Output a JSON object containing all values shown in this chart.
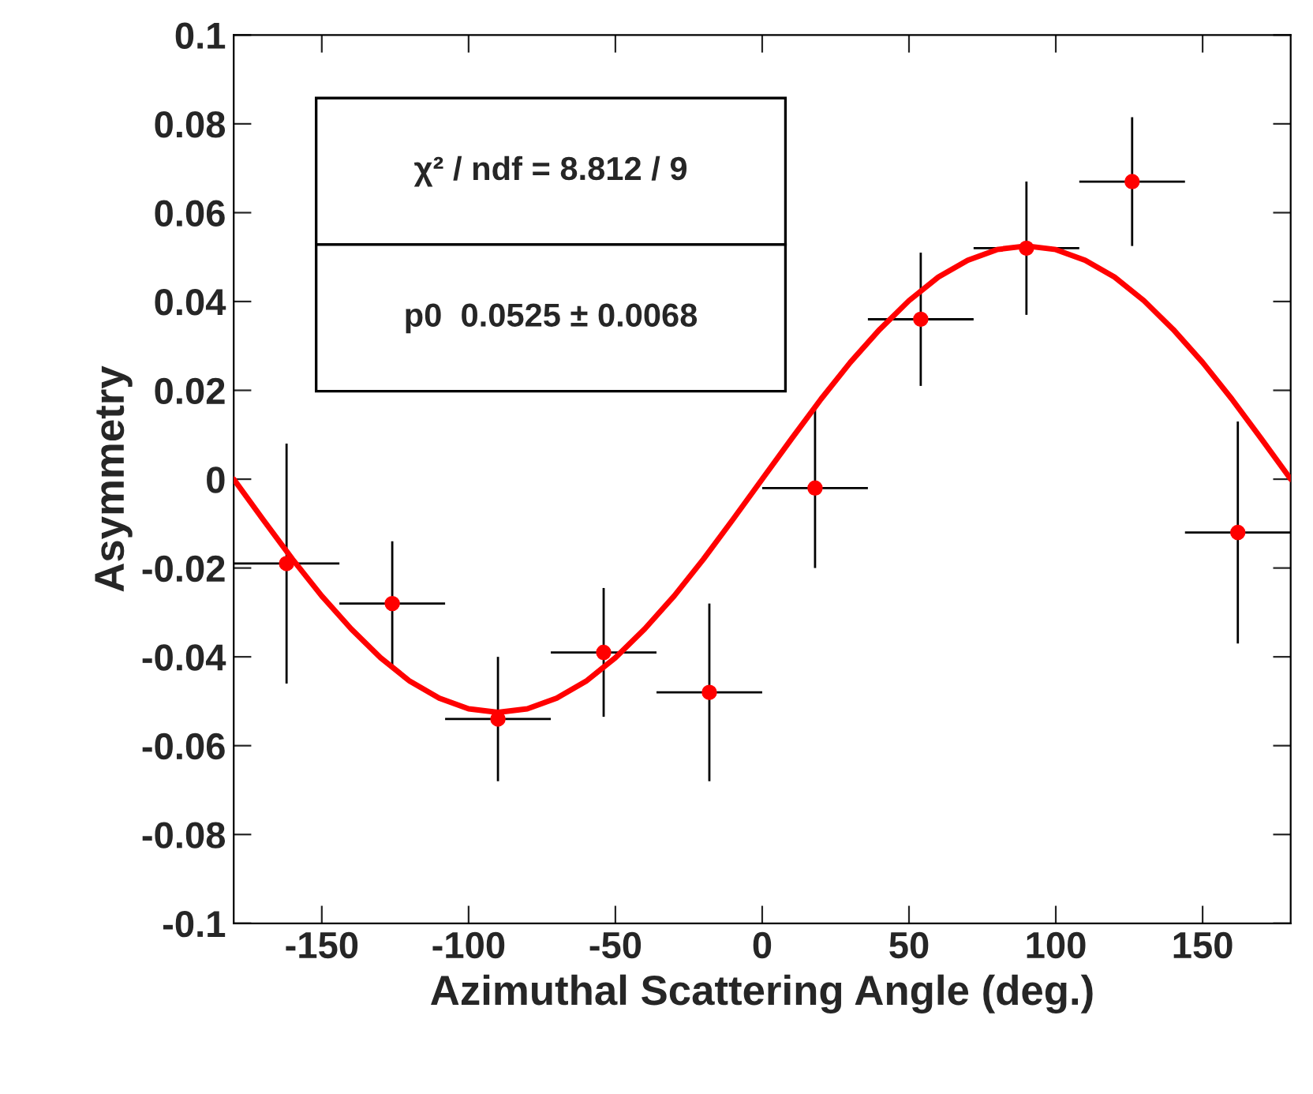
{
  "chart_data": {
    "type": "scatter",
    "xlabel": "Azimuthal Scattering Angle (deg.)",
    "ylabel": "Asymmetry",
    "xlim": [
      -180,
      180
    ],
    "xticks": [
      -150,
      -100,
      -50,
      0,
      50,
      100,
      150
    ],
    "ylim": [
      -0.1,
      0.1
    ],
    "yticks": [
      -0.1,
      -0.08,
      -0.06,
      -0.04,
      -0.02,
      0,
      0.02,
      0.04,
      0.06,
      0.08,
      0.1
    ],
    "grid": false,
    "annotations": [
      "χ² / ndf = 8.812 / 9",
      "p0  0.0525 ± 0.0068"
    ],
    "series": [
      {
        "marker": "circle",
        "color": "#ff0000",
        "x": [
          -162,
          -126,
          -90,
          -54,
          -18,
          18,
          54,
          90,
          126,
          162
        ],
        "values": [
          -0.019,
          -0.028,
          -0.054,
          -0.039,
          -0.048,
          -0.002,
          0.036,
          0.052,
          0.067,
          -0.012
        ],
        "errors": [
          0.027,
          0.014,
          0.014,
          0.0145,
          0.02,
          0.018,
          0.015,
          0.015,
          0.0145,
          0.025
        ],
        "xerrors": [
          18,
          18,
          18,
          18,
          18,
          18,
          18,
          18,
          18,
          18
        ]
      },
      {
        "type": "line",
        "color": "#ff0000",
        "x": [
          -180,
          -170,
          -160,
          -150,
          -140,
          -130,
          -120,
          -110,
          -100,
          -90,
          -80,
          -70,
          -60,
          -50,
          -40,
          -30,
          -20,
          -10,
          0,
          10,
          20,
          30,
          40,
          50,
          60,
          70,
          80,
          90,
          100,
          110,
          120,
          130,
          140,
          150,
          160,
          170,
          180
        ],
        "values": [
          0.0,
          -0.0091,
          -0.018,
          -0.0263,
          -0.0337,
          -0.0402,
          -0.0455,
          -0.0493,
          -0.0517,
          -0.0525,
          -0.0517,
          -0.0493,
          -0.0455,
          -0.0402,
          -0.0337,
          -0.0263,
          -0.018,
          -0.0091,
          0.0,
          0.0091,
          0.018,
          0.0263,
          0.0337,
          0.0402,
          0.0455,
          0.0493,
          0.0517,
          0.0525,
          0.0517,
          0.0493,
          0.0455,
          0.0402,
          0.0337,
          0.0263,
          0.018,
          0.0091,
          0.0
        ]
      }
    ]
  }
}
